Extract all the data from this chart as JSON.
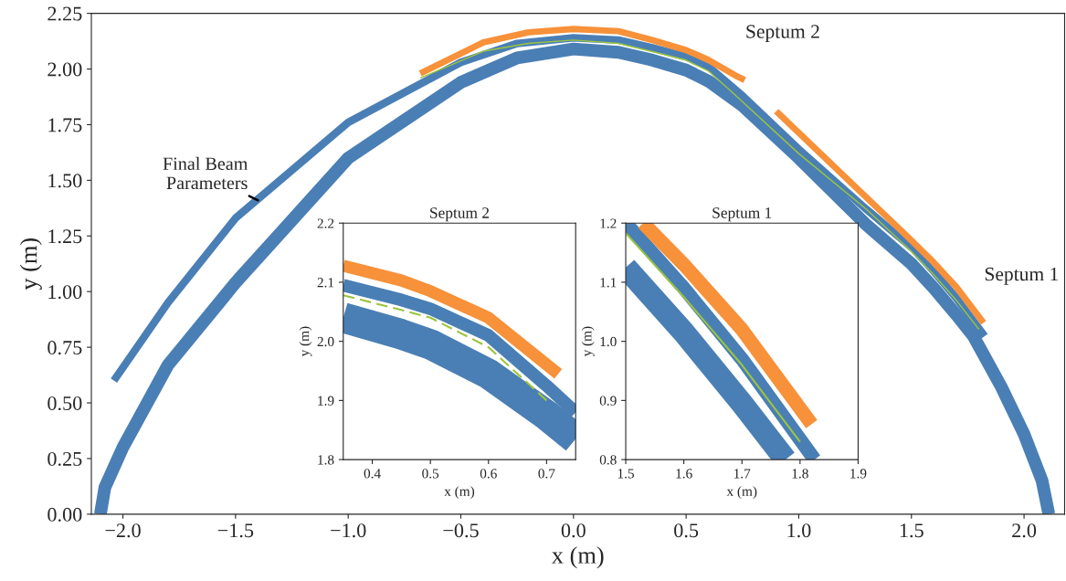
{
  "chart_data": [
    {
      "type": "line",
      "xlabel": "x (m)",
      "ylabel": "y (m)",
      "xlim": [
        -2.14,
        2.18
      ],
      "ylim": [
        0,
        2.25
      ],
      "xticks": [
        {
          "value": -2.0,
          "label": "−2.0"
        },
        {
          "value": -1.5,
          "label": "−1.5"
        },
        {
          "value": -1.0,
          "label": "−1.0"
        },
        {
          "value": -0.5,
          "label": "−0.5"
        },
        {
          "value": 0,
          "label": "0.0"
        },
        {
          "value": 0.5,
          "label": "0.5"
        },
        {
          "value": 1.0,
          "label": "1.0"
        },
        {
          "value": 1.5,
          "label": "1.5"
        },
        {
          "value": 2.0,
          "label": "2.0"
        }
      ],
      "yticks": [
        {
          "value": 0,
          "label": "0.00"
        },
        {
          "value": 0.25,
          "label": "0.25"
        },
        {
          "value": 0.5,
          "label": "0.50"
        },
        {
          "value": 0.75,
          "label": "0.75"
        },
        {
          "value": 1.0,
          "label": "1.00"
        },
        {
          "value": 1.25,
          "label": "1.25"
        },
        {
          "value": 1.5,
          "label": "1.50"
        },
        {
          "value": 1.75,
          "label": "1.75"
        },
        {
          "value": 2.0,
          "label": "2.00"
        },
        {
          "value": 2.25,
          "label": "2.25"
        }
      ],
      "series": [
        {
          "color": "#4a7fb5",
          "line_style": "solid",
          "x": [
            -2.1,
            -2.08,
            -2.0,
            -1.8,
            -1.5,
            -1.0,
            -0.5,
            -0.25,
            0,
            0.2,
            0.35,
            0.5,
            0.6,
            0.75,
            1.0,
            1.3,
            1.5,
            1.6,
            1.7,
            1.775,
            1.9,
            2.0,
            2.08,
            2.11
          ],
          "values": [
            0,
            0.12,
            0.3,
            0.67,
            1.04,
            1.6,
            1.94,
            2.05,
            2.09,
            2.075,
            2.04,
            1.995,
            1.945,
            1.835,
            1.6,
            1.3,
            1.125,
            1.015,
            0.895,
            0.8,
            0.57,
            0.36,
            0.15,
            0
          ]
        },
        {
          "color": "#4a7fb5",
          "line_style": "solid",
          "x": [
            -2.04,
            -1.8,
            -1.5,
            -1.0,
            -0.5,
            -0.25,
            0,
            0.2,
            0.35,
            0.5,
            0.6,
            0.75,
            1.0,
            1.3,
            1.51,
            1.6,
            1.7,
            1.825
          ],
          "values": [
            0.6,
            0.95,
            1.33,
            1.76,
            2.03,
            2.115,
            2.14,
            2.13,
            2.095,
            2.055,
            2.01,
            1.88,
            1.64,
            1.37,
            1.19,
            1.09,
            0.97,
            0.8
          ]
        },
        {
          "name": "Septum 2",
          "color": "#f7913a",
          "line_style": "solid",
          "x": [
            -0.68,
            -0.4,
            -0.2,
            0,
            0.2,
            0.35,
            0.5,
            0.6,
            0.72,
            0.76
          ],
          "values": [
            1.98,
            2.12,
            2.165,
            2.18,
            2.17,
            2.13,
            2.085,
            2.04,
            1.97,
            1.95
          ]
        },
        {
          "name": "Septum 1",
          "color": "#f7913a",
          "line_style": "solid",
          "x": [
            0.9,
            1.2,
            1.5,
            1.6,
            1.7,
            1.82
          ],
          "values": [
            1.81,
            1.52,
            1.23,
            1.13,
            1.02,
            0.86
          ]
        },
        {
          "color": "#9bc53d",
          "line_style": "solid",
          "x": [
            -0.68,
            -0.4,
            -0.2,
            0,
            0.2,
            0.35,
            0.5,
            0.6,
            0.7,
            1.0,
            1.3,
            1.5,
            1.6,
            1.7,
            1.8
          ],
          "values": [
            1.96,
            2.08,
            2.115,
            2.13,
            2.115,
            2.078,
            2.04,
            1.99,
            1.9,
            1.62,
            1.37,
            1.18,
            1.075,
            0.96,
            0.83
          ]
        }
      ],
      "annotations": [
        {
          "text": "Final Beam\nParameters",
          "x": -1.4,
          "y": 1.41
        }
      ]
    },
    {
      "type": "line",
      "title": "Septum 2",
      "xlabel": "x (m)",
      "ylabel": "y (m)",
      "xlim": [
        0.35,
        0.75
      ],
      "ylim": [
        1.8,
        2.2
      ],
      "xticks": [
        0.4,
        0.5,
        0.6,
        0.7
      ],
      "yticks": [
        1.8,
        1.9,
        {
          "value": 2.0,
          "label": "2.0"
        },
        2.1,
        2.2
      ],
      "series": [
        {
          "color": "#4a7fb5",
          "line_style": "solid",
          "x": [
            0.35,
            0.45,
            0.5,
            0.6,
            0.7,
            0.75
          ],
          "values": [
            2.04,
            2.012,
            1.995,
            1.945,
            1.875,
            1.835
          ]
        },
        {
          "color": "#4a7fb5",
          "line_style": "solid",
          "x": [
            0.35,
            0.45,
            0.5,
            0.6,
            0.7,
            0.75
          ],
          "values": [
            2.095,
            2.07,
            2.055,
            2.01,
            1.925,
            1.88
          ]
        },
        {
          "color": "#f7913a",
          "line_style": "solid",
          "x": [
            0.35,
            0.45,
            0.5,
            0.6,
            0.72
          ],
          "values": [
            2.128,
            2.103,
            2.085,
            2.04,
            1.945
          ]
        },
        {
          "color": "#9bc53d",
          "line_style": "dashed",
          "x": [
            0.35,
            0.45,
            0.5,
            0.6,
            0.7
          ],
          "values": [
            2.078,
            2.053,
            2.04,
            1.99,
            1.9
          ]
        }
      ]
    },
    {
      "type": "line",
      "title": "Septum 1",
      "xlabel": "x (m)",
      "ylabel": "y (m)",
      "xlim": [
        1.5,
        1.9
      ],
      "ylim": [
        0.8,
        1.2
      ],
      "xticks": [
        1.5,
        1.6,
        1.7,
        1.8,
        1.9
      ],
      "yticks": [
        0.8,
        0.9,
        {
          "value": 1.0,
          "label": "1.0"
        },
        1.1,
        1.2
      ],
      "series": [
        {
          "color": "#4a7fb5",
          "line_style": "solid",
          "x": [
            1.5,
            1.6,
            1.7,
            1.775
          ],
          "values": [
            1.125,
            1.015,
            0.895,
            0.8
          ]
        },
        {
          "color": "#4a7fb5",
          "line_style": "solid",
          "x": [
            1.5,
            1.6,
            1.7,
            1.825
          ],
          "values": [
            1.2,
            1.09,
            0.97,
            0.8
          ]
        },
        {
          "color": "#f7913a",
          "line_style": "solid",
          "x": [
            1.53,
            1.6,
            1.7,
            1.82
          ],
          "values": [
            1.2,
            1.13,
            1.02,
            0.86
          ]
        },
        {
          "color": "#9bc53d",
          "line_style": "solid",
          "x": [
            1.5,
            1.6,
            1.7,
            1.8
          ],
          "values": [
            1.183,
            1.075,
            0.96,
            0.83
          ]
        }
      ]
    }
  ]
}
